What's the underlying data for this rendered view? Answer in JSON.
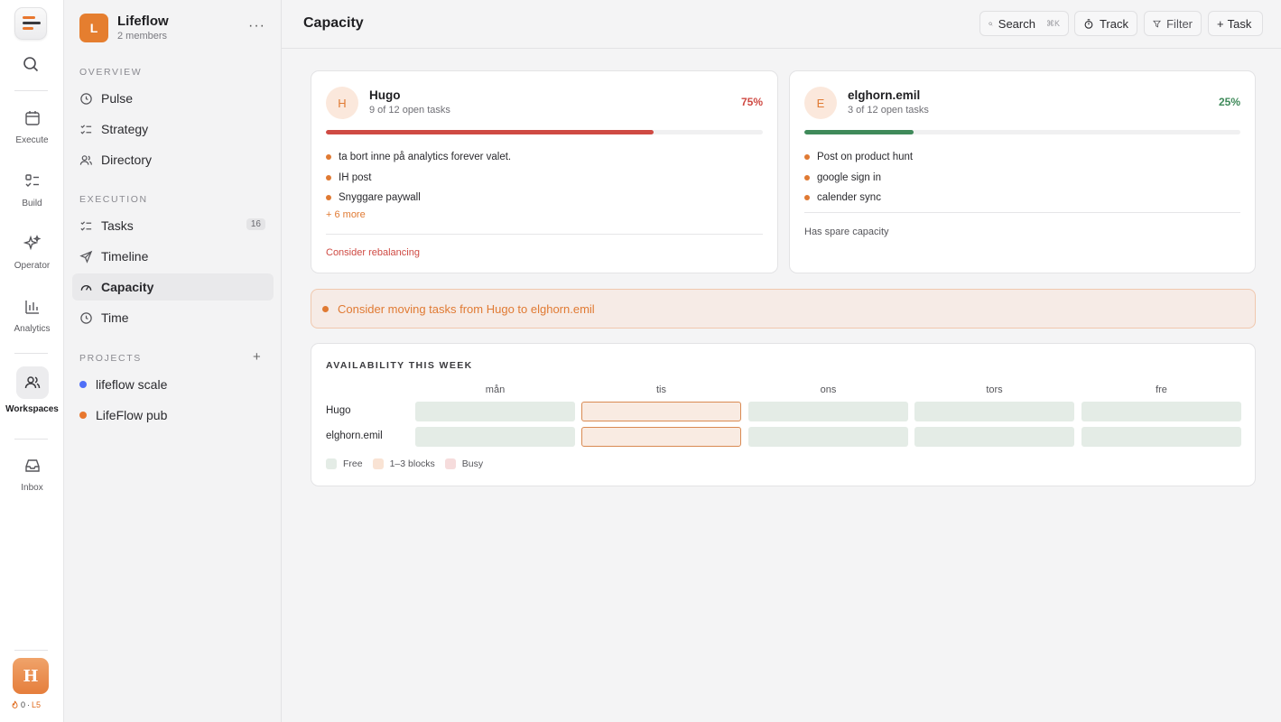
{
  "rail": {
    "items": [
      {
        "label": "Execute",
        "icon": "calendar-icon"
      },
      {
        "label": "Build",
        "icon": "checklist-icon"
      },
      {
        "label": "Operator",
        "icon": "sparkle-icon"
      },
      {
        "label": "Analytics",
        "icon": "bar-chart-icon"
      },
      {
        "label": "Workspaces",
        "icon": "users-icon"
      },
      {
        "label": "Inbox",
        "icon": "inbox-icon"
      }
    ],
    "avatar_letter": "H",
    "streak": "0",
    "separator": "·",
    "level": "L5"
  },
  "workspace": {
    "badge": "L",
    "name": "Lifeflow",
    "members": "2 members",
    "more": "···"
  },
  "sidebar": {
    "overview_title": "OVERVIEW",
    "overview": [
      {
        "label": "Pulse",
        "icon": "clock-icon"
      },
      {
        "label": "Strategy",
        "icon": "checklist-icon"
      },
      {
        "label": "Directory",
        "icon": "users-icon"
      }
    ],
    "execution_title": "EXECUTION",
    "execution": [
      {
        "label": "Tasks",
        "icon": "checklist-icon",
        "count": "16"
      },
      {
        "label": "Timeline",
        "icon": "send-icon"
      },
      {
        "label": "Capacity",
        "icon": "gauge-icon",
        "active": true
      },
      {
        "label": "Time",
        "icon": "clock-icon"
      }
    ],
    "projects_title": "PROJECTS",
    "projects_add": "+",
    "projects": [
      {
        "label": "lifeflow scale",
        "color": "#4f6ef7"
      },
      {
        "label": "LifeFlow pub",
        "color": "#e8772e"
      }
    ]
  },
  "topbar": {
    "title": "Capacity",
    "search_label": "Search",
    "search_kbd": "⌘K",
    "track_label": "Track",
    "filter_label": "Filter",
    "task_label": "Task",
    "task_prefix": "+"
  },
  "people": [
    {
      "initial": "H",
      "name": "Hugo",
      "open_tasks": "9 of 12 open tasks",
      "percent_label": "75%",
      "load": 0.75,
      "bar_color": "#cf4a43",
      "percent_color": "#cf4a43",
      "tasks": [
        "ta bort inne på analytics forever valet.",
        "IH post",
        "Snyggare paywall"
      ],
      "more": "+ 6 more",
      "footer": "Consider rebalancing",
      "footer_color": "#cf4a43"
    },
    {
      "initial": "E",
      "name": "elghorn.emil",
      "open_tasks": "3 of 12 open tasks",
      "percent_label": "25%",
      "load": 0.25,
      "bar_color": "#3f8a5a",
      "percent_color": "#3f8a5a",
      "tasks": [
        "Post on product hunt",
        "google sign in",
        "calender sync"
      ],
      "more": "",
      "footer": "Has spare capacity",
      "footer_color": "#55555a"
    }
  ],
  "banner": {
    "text": "Consider moving tasks from Hugo to elghorn.emil"
  },
  "availability": {
    "title": "AVAILABILITY THIS WEEK",
    "days": [
      "mån",
      "tis",
      "ons",
      "tors",
      "fre"
    ],
    "rows": [
      {
        "name": "Hugo",
        "levels": [
          "free",
          "blocks",
          "free",
          "free",
          "free"
        ]
      },
      {
        "name": "elghorn.emil",
        "levels": [
          "free",
          "blocks",
          "free",
          "free",
          "free"
        ]
      }
    ],
    "legend": [
      {
        "label": "Free",
        "color": "#e4ece6"
      },
      {
        "label": "1–3 blocks",
        "color": "#f9e3d4"
      },
      {
        "label": "Busy",
        "color": "#f6dcdc"
      }
    ]
  }
}
